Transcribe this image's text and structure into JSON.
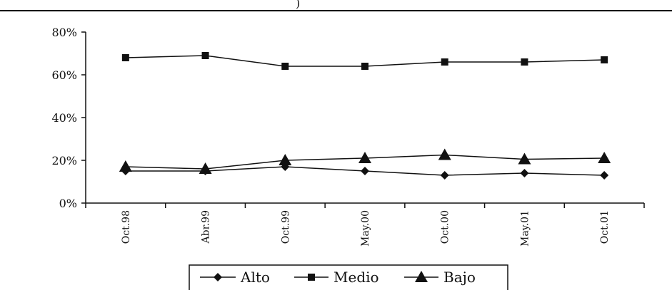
{
  "chart_data": {
    "type": "line",
    "categories": [
      "Oct.98",
      "Abr.99",
      "Oct.99",
      "May.00",
      "Oct.00",
      "May.01",
      "Oct.01"
    ],
    "y_ticks": [
      "0%",
      "20%",
      "40%",
      "60%",
      "80%"
    ],
    "ylim": [
      0,
      80
    ],
    "grid": false,
    "legend_position": "bottom",
    "series": [
      {
        "name": "Alto",
        "marker": "diamond",
        "values": [
          15,
          15,
          17,
          15,
          13,
          14,
          13
        ]
      },
      {
        "name": "Medio",
        "marker": "square",
        "values": [
          68,
          69,
          64,
          64,
          66,
          66,
          67
        ]
      },
      {
        "name": "Bajo",
        "marker": "triangle",
        "values": [
          17,
          16,
          20,
          21,
          22.5,
          20.5,
          21
        ]
      }
    ],
    "color": "#111111",
    "header_fragment": ")"
  }
}
